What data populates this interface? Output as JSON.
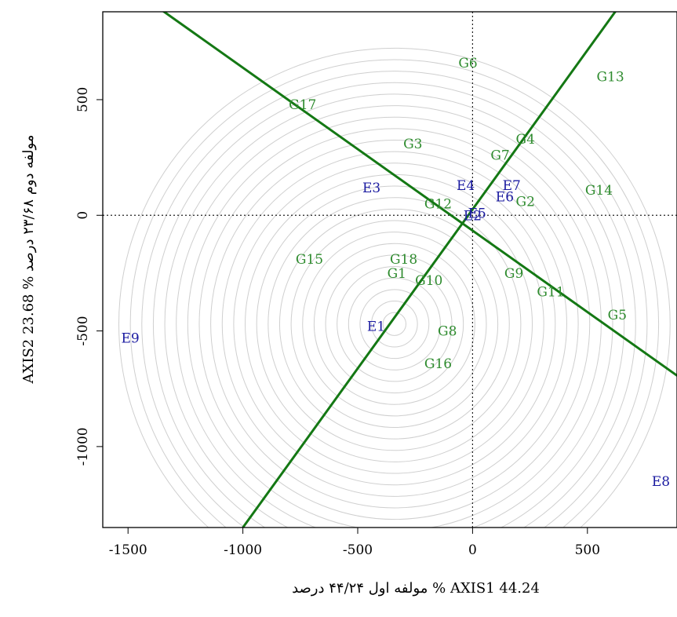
{
  "chart_data": {
    "type": "scatter",
    "title": "",
    "xlabel": "مولفه اول ۴۴/۲۴ درصد   % AXIS1 44.24",
    "ylabel": "AXIS2 23.68 %   مولفه دوم ۲۳/۶۸ درصد",
    "xlim": [
      -1610,
      890
    ],
    "ylim": [
      -1350,
      880
    ],
    "x_ticks": [
      -1500,
      -1000,
      -500,
      0,
      500
    ],
    "y_ticks": [
      -1000,
      -500,
      0,
      500
    ],
    "grid": false,
    "legend": "none",
    "circle_center": [
      -340,
      -470
    ],
    "circle_radii": [
      50,
      100,
      150,
      200,
      250,
      300,
      350,
      400,
      450,
      500,
      550,
      600,
      650,
      700,
      750,
      800,
      850,
      900,
      950,
      1000,
      1050,
      1100,
      1150,
      1200
    ],
    "lines": [
      {
        "from": [
          -1400,
          920
        ],
        "to": [
          900,
          -700
        ]
      },
      {
        "from": [
          -1000,
          -1350
        ],
        "to": [
          650,
          920
        ]
      }
    ],
    "colors": {
      "genotype": "#2e8b2e",
      "environment": "#1a1aa0",
      "line": "#147814",
      "circle": "#cfcfcf"
    },
    "series": [
      {
        "name": "Genotypes",
        "points": [
          {
            "label": "G1",
            "x": -330,
            "y": -250
          },
          {
            "label": "G2",
            "x": 230,
            "y": 60
          },
          {
            "label": "G3",
            "x": -260,
            "y": 310
          },
          {
            "label": "G4",
            "x": 230,
            "y": 330
          },
          {
            "label": "G5",
            "x": 630,
            "y": -430
          },
          {
            "label": "G6",
            "x": -20,
            "y": 660
          },
          {
            "label": "G7",
            "x": 120,
            "y": 260
          },
          {
            "label": "G8",
            "x": -110,
            "y": -500
          },
          {
            "label": "G9",
            "x": 180,
            "y": -250
          },
          {
            "label": "G10",
            "x": -190,
            "y": -280
          },
          {
            "label": "G11",
            "x": 340,
            "y": -330
          },
          {
            "label": "G12",
            "x": -150,
            "y": 50
          },
          {
            "label": "G13",
            "x": 600,
            "y": 600
          },
          {
            "label": "G14",
            "x": 550,
            "y": 110
          },
          {
            "label": "G15",
            "x": -710,
            "y": -190
          },
          {
            "label": "G16",
            "x": -150,
            "y": -640
          },
          {
            "label": "G17",
            "x": -740,
            "y": 480
          },
          {
            "label": "G18",
            "x": -300,
            "y": -190
          }
        ]
      },
      {
        "name": "Environments",
        "points": [
          {
            "label": "E1",
            "x": -420,
            "y": -480
          },
          {
            "label": "E2",
            "x": 0,
            "y": 0
          },
          {
            "label": "E3",
            "x": -440,
            "y": 120
          },
          {
            "label": "E4",
            "x": -30,
            "y": 130
          },
          {
            "label": "E5",
            "x": 20,
            "y": 10
          },
          {
            "label": "E6",
            "x": 140,
            "y": 80
          },
          {
            "label": "E7",
            "x": 170,
            "y": 130
          },
          {
            "label": "E8",
            "x": 820,
            "y": -1150
          },
          {
            "label": "E9",
            "x": -1490,
            "y": -530
          }
        ]
      }
    ]
  }
}
